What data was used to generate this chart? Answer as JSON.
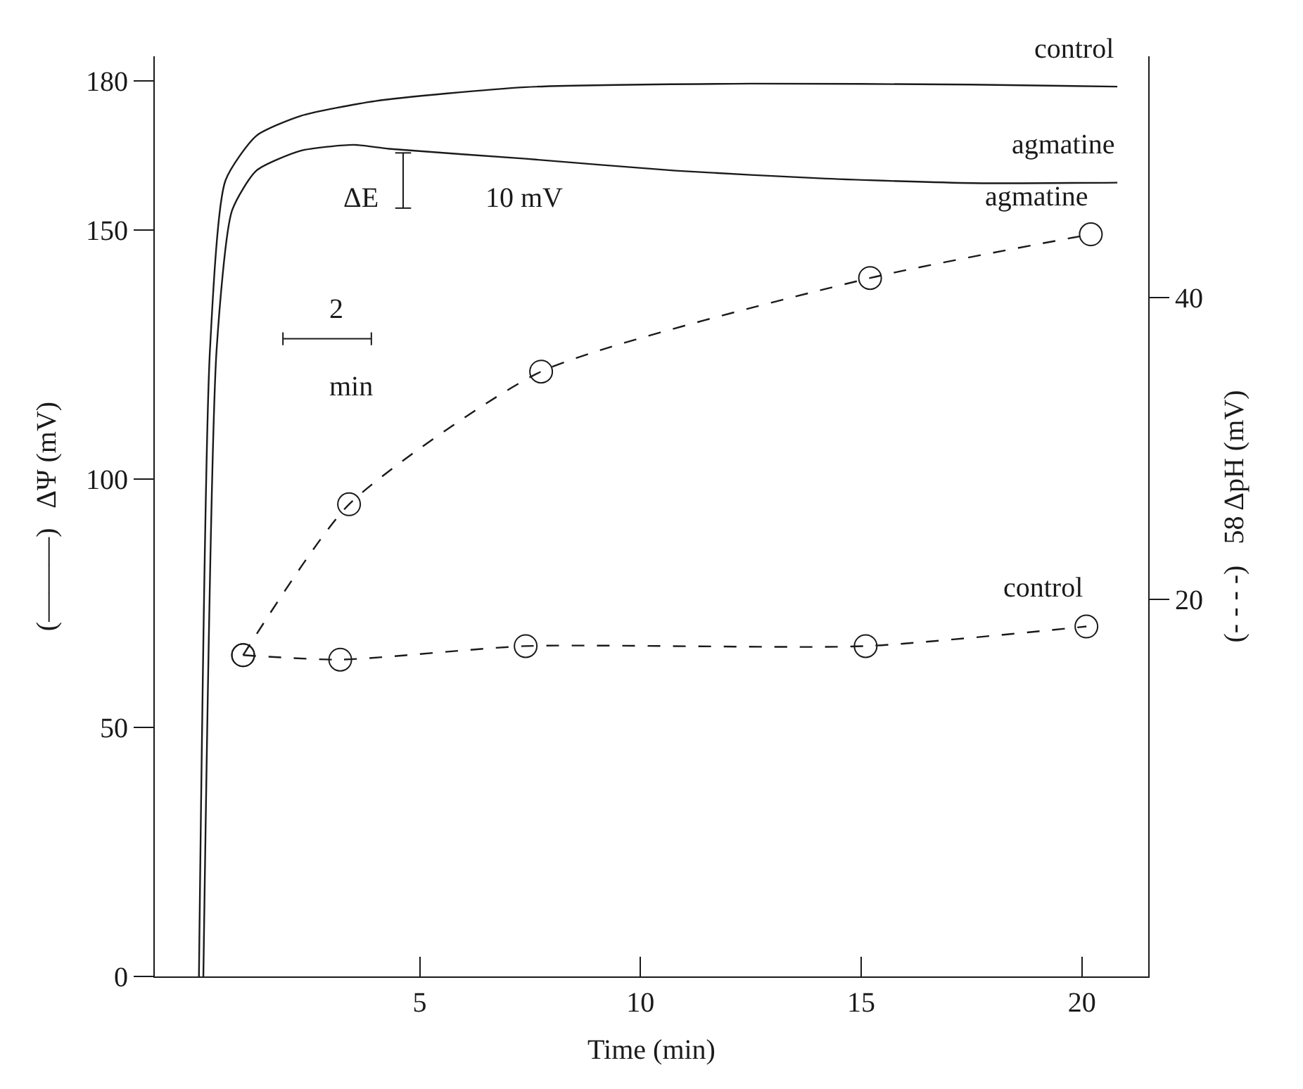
{
  "chart_data": {
    "type": "line",
    "xlabel": "Time (min)",
    "ylabel": "(———)   ΔΨ (mV)",
    "y2label": "(- - - -)   58 ΔpH (mV)",
    "xlim": [
      -1,
      21.5
    ],
    "xticks": [
      5,
      10,
      15,
      20
    ],
    "ylim": [
      0,
      185
    ],
    "yticks": [
      0,
      50,
      100,
      150,
      180
    ],
    "y2lim": [
      -5,
      56
    ],
    "y2ticks": [
      20,
      40
    ],
    "series": [
      {
        "color": "#1a1a1a",
        "line_style": "solid",
        "marker": "none",
        "x": [
          0,
          0.25,
          0.6,
          1.3,
          2.3,
          4,
          7.4,
          12.5,
          17.5,
          20.8
        ],
        "values": [
          0,
          126,
          160,
          169,
          173,
          176,
          178.8,
          179.5,
          179.3,
          178.9
        ]
      },
      {
        "color": "#1a1a1a",
        "line_style": "solid",
        "marker": "none",
        "x": [
          0.1,
          0.4,
          0.75,
          1.3,
          2.3,
          3.5,
          4.3,
          7.4,
          10.8,
          14.2,
          17.5,
          20.8
        ],
        "values": [
          0,
          126,
          154,
          162,
          166,
          167.2,
          166.4,
          164.4,
          162,
          160.4,
          159.5,
          159.6
        ]
      },
      {
        "axis": "y2",
        "color": "#1a1a1a",
        "line_style": "dashed",
        "marker": "circle",
        "x": [
          1.0,
          3.4,
          7.75,
          15.2,
          20.2
        ],
        "values": [
          16.3,
          26.3,
          35.1,
          41.3,
          44.2
        ]
      },
      {
        "axis": "y2",
        "color": "#1a1a1a",
        "line_style": "dashed",
        "marker": "circle",
        "x": [
          1.0,
          3.2,
          7.4,
          15.1,
          20.1
        ],
        "values": [
          16.3,
          16.0,
          16.9,
          16.9,
          18.2
        ]
      }
    ],
    "annotations": [
      "control",
      "agmatine",
      "agmatine",
      "control",
      "ΔE",
      "10 mV",
      "2",
      "min"
    ]
  }
}
